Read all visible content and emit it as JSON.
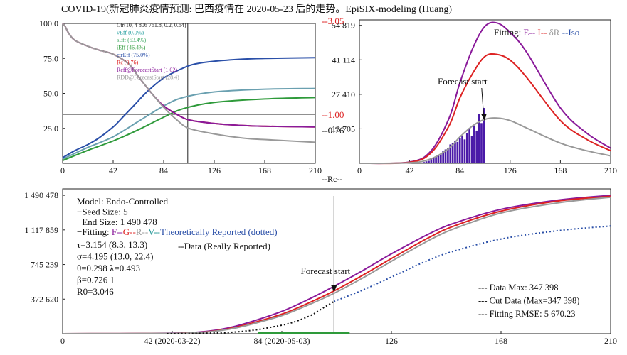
{
  "title": "COVID-19(新冠肺炎疫情预测: 巴西疫情在 2020-05-23 后的走势。EpiSIX-modeling (Huang)",
  "chart_data": [
    {
      "type": "line",
      "panel": "top-left",
      "xlim": [
        0,
        210
      ],
      "xticks": [
        "0",
        "42",
        "84",
        "126",
        "168",
        "210"
      ],
      "ylim": [
        0,
        100
      ],
      "yticks": [
        "25.0",
        "50.0",
        "75.0",
        "100.0"
      ],
      "right_labels": {
        "top": "--3.05",
        "mid": "--1.00",
        "low": "--0.76",
        "bottom": "--Rc--"
      },
      "crosshair": {
        "x": 104,
        "y": 35
      },
      "legend": [
        {
          "text": "Ctr(10, 4 806 761.8, 0.2, 0.64)",
          "color": "#222222"
        },
        {
          "text": "vEff (0.0%)",
          "color": "#1a9a9a"
        },
        {
          "text": "sEff (53.4%)",
          "color": "#44aa66"
        },
        {
          "text": "iEff (46.4%)",
          "color": "#2e9a3a"
        },
        {
          "text": "ctrEff (75.0%)",
          "color": "#2a4fa8"
        },
        {
          "text": "Rc (0.76)",
          "color": "#dd2222"
        },
        {
          "text": "Reff@ForecastStart (1.02)",
          "color": "#8a1a9a"
        },
        {
          "text": "RDD@ForecastStart (28.4)",
          "color": "#999999"
        }
      ],
      "series": [
        {
          "color": "#2a4fa8",
          "x": [
            0,
            10,
            20,
            30,
            42,
            50,
            60,
            70,
            84,
            100,
            110,
            126,
            150,
            168,
            210
          ],
          "values": [
            4,
            9,
            13,
            18,
            26,
            33,
            42,
            51,
            61,
            68,
            71,
            73,
            74.5,
            75,
            75.5
          ]
        },
        {
          "color": "#6aa0b0",
          "x": [
            0,
            20,
            42,
            63,
            84,
            100,
            126,
            168,
            210
          ],
          "values": [
            3,
            11,
            19,
            30,
            41,
            47,
            51,
            53,
            53.5
          ]
        },
        {
          "color": "#2e9a3a",
          "x": [
            0,
            20,
            42,
            63,
            84,
            100,
            126,
            168,
            210
          ],
          "values": [
            2,
            9,
            16,
            24,
            33,
            39,
            43.5,
            46,
            47
          ]
        },
        {
          "color": "#dd2222",
          "x": [
            0,
            2,
            5,
            10,
            20,
            30,
            42,
            55,
            63,
            75,
            84,
            95,
            105,
            126,
            150,
            168,
            210
          ],
          "values": [
            100,
            98,
            93,
            88,
            84,
            81,
            78,
            71,
            62,
            49,
            41,
            35,
            31,
            28.5,
            27,
            26.5,
            26
          ]
        },
        {
          "color": "#8a1a9a",
          "x": [
            0,
            2,
            5,
            10,
            20,
            30,
            42,
            55,
            63,
            75,
            84,
            95,
            105,
            126,
            150,
            168,
            210
          ],
          "values": [
            100,
            98,
            93,
            88,
            84,
            81,
            78,
            71,
            62,
            49,
            41,
            35,
            31,
            28.5,
            27,
            26.5,
            26
          ]
        },
        {
          "color": "#9a9a9a",
          "x": [
            0,
            2,
            5,
            10,
            20,
            30,
            42,
            55,
            63,
            75,
            84,
            95,
            105,
            126,
            150,
            168,
            210
          ],
          "values": [
            100,
            98,
            93,
            88,
            84,
            81,
            78,
            71,
            62,
            49,
            40,
            31,
            25,
            21,
            18,
            17,
            15
          ]
        }
      ]
    },
    {
      "type": "line",
      "panel": "top-right",
      "xlim": [
        0,
        210
      ],
      "xticks": [
        "0",
        "42",
        "84",
        "126",
        "168",
        "210"
      ],
      "ylim": [
        0,
        57000
      ],
      "yticks": [
        "13 705",
        "27 410",
        "41 114",
        "54 819"
      ],
      "legend_parts": [
        {
          "text": "Fitting: ",
          "color": "#111111"
        },
        {
          "text": "E-- ",
          "color": "#8a1a9a"
        },
        {
          "text": "I-- ",
          "color": "#dd2222"
        },
        {
          "text": "δR ",
          "color": "#999999"
        },
        {
          "text": "--Iso",
          "color": "#2a4fa8"
        }
      ],
      "annotation": "Forecast start",
      "forecast_x": 104,
      "series": [
        {
          "color": "#8a1a9a",
          "x": [
            0,
            42,
            60,
            75,
            84,
            95,
            105,
            115,
            126,
            140,
            168,
            190,
            210
          ],
          "values": [
            0,
            500,
            5000,
            18000,
            32000,
            46000,
            54500,
            55800,
            52000,
            44000,
            22000,
            12000,
            6000
          ]
        },
        {
          "color": "#dd2222",
          "x": [
            0,
            42,
            60,
            75,
            84,
            95,
            105,
            115,
            126,
            140,
            168,
            190,
            210
          ],
          "values": [
            0,
            400,
            4200,
            15000,
            26000,
            36000,
            42500,
            43300,
            41000,
            34000,
            17000,
            9500,
            5000
          ]
        },
        {
          "color": "#999999",
          "x": [
            0,
            42,
            60,
            75,
            84,
            95,
            105,
            115,
            126,
            140,
            168,
            190,
            210
          ],
          "values": [
            0,
            200,
            1800,
            6000,
            10500,
            15000,
            17500,
            18000,
            17000,
            14000,
            8000,
            5000,
            3000
          ]
        }
      ],
      "bars": {
        "color": "#4a1aa8",
        "x": [
          50,
          52,
          54,
          56,
          58,
          60,
          62,
          64,
          66,
          68,
          70,
          72,
          74,
          76,
          78,
          80,
          82,
          84,
          86,
          88,
          90,
          92,
          94,
          96,
          98,
          100,
          102,
          104
        ],
        "values": [
          150,
          300,
          500,
          800,
          1000,
          1600,
          2000,
          2500,
          3200,
          3600,
          5000,
          5500,
          6200,
          7500,
          8000,
          9000,
          8500,
          10000,
          11000,
          9500,
          12000,
          14000,
          11000,
          15000,
          13000,
          19500,
          16000,
          22000
        ]
      }
    },
    {
      "type": "line",
      "panel": "bottom",
      "xlim": [
        0,
        210
      ],
      "xticks": [
        "0",
        "42 (2020-03-22)",
        "84 (2020-05-03)",
        "126",
        "168",
        "210"
      ],
      "ylim": [
        0,
        1560000
      ],
      "yticks": [
        "372 620",
        "745 239",
        "1 117 859",
        "1 490 478"
      ],
      "annotation": "Forecast start",
      "forecast_x": 104,
      "info_lines": [
        "Model: Endo-Controlled",
        "−Seed Size: 5",
        "−End Size: 1 490 478"
      ],
      "fitting_line_parts": [
        {
          "text": "−Fitting: ",
          "color": "#111111"
        },
        {
          "text": "F--",
          "color": "#8a1a9a"
        },
        {
          "text": "G--",
          "color": "#dd2222"
        },
        {
          "text": "R--",
          "color": "#999999"
        },
        {
          "text": "V--",
          "color": "#2a9a9a"
        },
        {
          "text": "Theoretically Reported (dotted)",
          "color": "#2a4fa8"
        }
      ],
      "data_label": "--Data (Really Reported)",
      "params": [
        "τ=3.154 (8.3, 13.3)",
        "σ=4.195 (13.0, 22.4)",
        "θ=0.298 λ=0.493",
        "β=0.726 1",
        "R0=3.046"
      ],
      "stats": [
        "--- Data Max: 347 398",
        "--- Cut Data (Max=347 398)",
        "--- Fitting RMSE: 5 670.23"
      ],
      "series": [
        {
          "color": "#8a1a9a",
          "x": [
            0,
            42,
            55,
            63,
            70,
            84,
            95,
            104,
            115,
            126,
            140,
            150,
            168,
            190,
            210
          ],
          "values": [
            0,
            5000,
            25000,
            60000,
            110000,
            240000,
            380000,
            510000,
            680000,
            860000,
            1070000,
            1190000,
            1340000,
            1440000,
            1490478
          ]
        },
        {
          "color": "#dd2222",
          "x": [
            0,
            42,
            55,
            63,
            70,
            84,
            95,
            104,
            115,
            126,
            140,
            150,
            168,
            190,
            210
          ],
          "values": [
            0,
            4000,
            20000,
            50000,
            95000,
            210000,
            340000,
            460000,
            630000,
            810000,
            1030000,
            1160000,
            1320000,
            1430000,
            1480000
          ]
        },
        {
          "color": "#9a9a9a",
          "x": [
            0,
            42,
            55,
            63,
            70,
            84,
            95,
            104,
            115,
            126,
            140,
            150,
            168,
            190,
            210
          ],
          "values": [
            0,
            3500,
            18000,
            45000,
            85000,
            195000,
            320000,
            435000,
            600000,
            780000,
            1000000,
            1130000,
            1300000,
            1410000,
            1470000
          ]
        },
        {
          "color": "#2a4fa8",
          "dotted": true,
          "x": [
            104,
            115,
            126,
            140,
            150,
            168,
            190,
            210
          ],
          "values": [
            347398,
            470000,
            610000,
            790000,
            890000,
            1020000,
            1110000,
            1160000
          ]
        },
        {
          "color": "#111111",
          "dotted": true,
          "x": [
            40,
            50,
            60,
            65,
            70,
            75,
            80,
            84,
            88,
            92,
            96,
            100,
            104
          ],
          "values": [
            500,
            3000,
            9000,
            16000,
            28000,
            45000,
            70000,
            92000,
            120000,
            160000,
            210000,
            280000,
            347398
          ]
        }
      ]
    }
  ]
}
